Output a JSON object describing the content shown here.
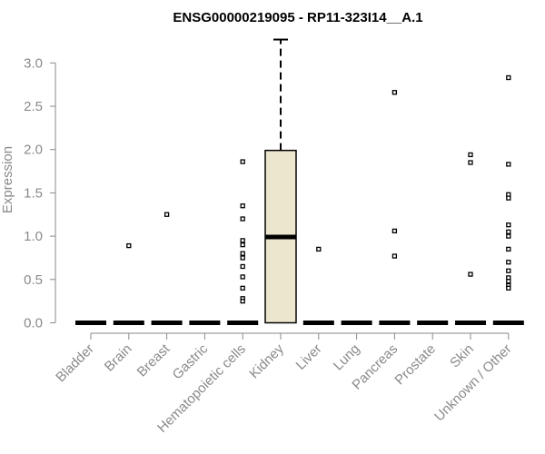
{
  "chart_data": {
    "type": "box",
    "title": "ENSG00000219095 - RP11-323I14__A.1",
    "xlabel": "",
    "ylabel": "Expression",
    "ylim": [
      0,
      3.2
    ],
    "yticks": [
      "0.0",
      "0.5",
      "1.0",
      "1.5",
      "2.0",
      "2.5",
      "3.0"
    ],
    "grid": false,
    "categories": [
      "Bladder",
      "Brain",
      "Breast",
      "Gastric",
      "Hematopoietic cells",
      "Kidney",
      "Liver",
      "Lung",
      "Pancreas",
      "Prostate",
      "Skin",
      "Unknown / Other"
    ],
    "boxes": [
      {
        "category": "Bladder",
        "q1": 0,
        "median": 0,
        "q3": 0,
        "whisker_low": 0,
        "whisker_high": 0,
        "outliers": []
      },
      {
        "category": "Brain",
        "q1": 0,
        "median": 0,
        "q3": 0,
        "whisker_low": 0,
        "whisker_high": 0,
        "outliers": [
          0.89
        ]
      },
      {
        "category": "Breast",
        "q1": 0,
        "median": 0,
        "q3": 0,
        "whisker_low": 0,
        "whisker_high": 0,
        "outliers": [
          1.25
        ]
      },
      {
        "category": "Gastric",
        "q1": 0,
        "median": 0,
        "q3": 0,
        "whisker_low": 0,
        "whisker_high": 0,
        "outliers": []
      },
      {
        "category": "Hematopoietic cells",
        "q1": 0,
        "median": 0,
        "q3": 0,
        "whisker_low": 0,
        "whisker_high": 0,
        "outliers": [
          1.86,
          1.35,
          1.2,
          0.95,
          0.9,
          0.8,
          0.75,
          0.65,
          0.53,
          0.4,
          0.28,
          0.25
        ]
      },
      {
        "category": "Kidney",
        "q1": 0,
        "median": 0.99,
        "q3": 1.99,
        "whisker_low": 0,
        "whisker_high": 3.27,
        "outliers": []
      },
      {
        "category": "Liver",
        "q1": 0,
        "median": 0,
        "q3": 0,
        "whisker_low": 0,
        "whisker_high": 0,
        "outliers": [
          0.85
        ]
      },
      {
        "category": "Lung",
        "q1": 0,
        "median": 0,
        "q3": 0,
        "whisker_low": 0,
        "whisker_high": 0,
        "outliers": []
      },
      {
        "category": "Pancreas",
        "q1": 0,
        "median": 0,
        "q3": 0,
        "whisker_low": 0,
        "whisker_high": 0,
        "outliers": [
          2.66,
          1.06,
          0.77
        ]
      },
      {
        "category": "Prostate",
        "q1": 0,
        "median": 0,
        "q3": 0,
        "whisker_low": 0,
        "whisker_high": 0,
        "outliers": []
      },
      {
        "category": "Skin",
        "q1": 0,
        "median": 0,
        "q3": 0,
        "whisker_low": 0,
        "whisker_high": 0,
        "outliers": [
          1.94,
          1.85,
          0.56
        ]
      },
      {
        "category": "Unknown / Other",
        "q1": 0,
        "median": 0,
        "q3": 0,
        "whisker_low": 0,
        "whisker_high": 0,
        "outliers": [
          2.83,
          1.83,
          1.48,
          1.44,
          1.13,
          1.05,
          1.0,
          0.85,
          0.7,
          0.6,
          0.52,
          0.48,
          0.43,
          0.4
        ]
      }
    ],
    "colors": {
      "box_fill": "#ede6cf",
      "box_stroke": "#000000",
      "axis": "#8a8a8a",
      "title": "#000000"
    }
  }
}
